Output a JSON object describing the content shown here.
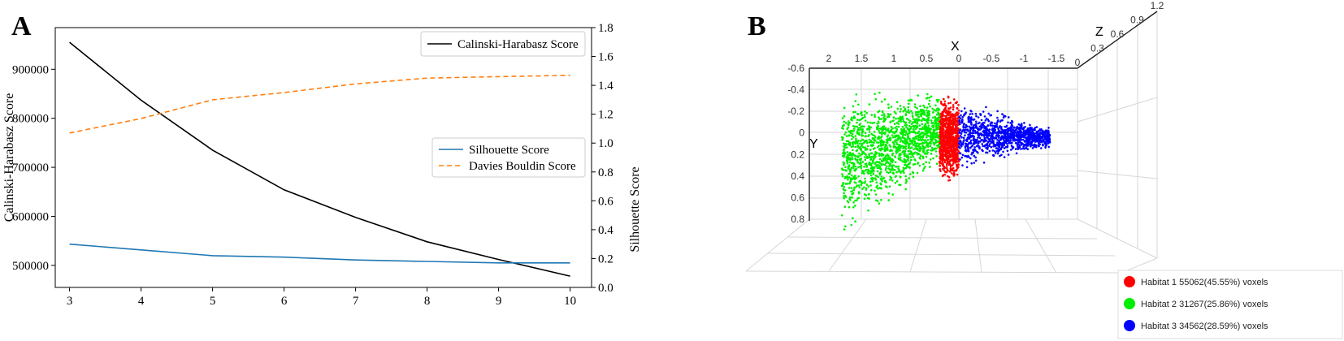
{
  "panels": {
    "a": "A",
    "b": "B"
  },
  "chart_data": [
    {
      "type": "line",
      "panel": "A",
      "x": [
        3,
        4,
        5,
        6,
        7,
        8,
        9,
        10
      ],
      "xlim": [
        2.8,
        10.3
      ],
      "ylabel": "Calinski-Harabasz Score",
      "ylabel_right": "Silhouette Score",
      "ylim_left": [
        455000,
        985000
      ],
      "ylim_right": [
        0,
        1.8
      ],
      "left_ticks": [
        "500000",
        "600000",
        "700000",
        "800000",
        "900000"
      ],
      "left_tick_values": [
        500000,
        600000,
        700000,
        800000,
        900000
      ],
      "right_ticks": [
        "0.0",
        "0.2",
        "0.4",
        "0.6",
        "0.8",
        "1.0",
        "1.2",
        "1.4",
        "1.6",
        "1.8"
      ],
      "right_tick_values": [
        0,
        0.2,
        0.4,
        0.6,
        0.8,
        1.0,
        1.2,
        1.4,
        1.6,
        1.8
      ],
      "x_ticks": [
        "3",
        "4",
        "5",
        "6",
        "7",
        "8",
        "9",
        "10"
      ],
      "series": [
        {
          "name": "Calinski-Harabasz Score",
          "axis": "left",
          "color": "#000000",
          "dash": "none",
          "values": [
            955000,
            837000,
            735000,
            654000,
            598000,
            548000,
            512000,
            478000
          ]
        },
        {
          "name": "Silhouette Score",
          "axis": "right",
          "color": "#1f77b4",
          "dash": "none",
          "values": [
            0.3,
            0.26,
            0.22,
            0.21,
            0.19,
            0.18,
            0.17,
            0.17
          ]
        },
        {
          "name": "Davies Bouldin Score",
          "axis": "right",
          "color": "#ff7f0e",
          "dash": "6,4",
          "values": [
            1.07,
            1.17,
            1.3,
            1.35,
            1.41,
            1.45,
            1.46,
            1.47
          ]
        }
      ],
      "legend_top": "Calinski-Harabasz Score",
      "legend_mid": [
        "Silhouette Score",
        "Davies Bouldin Score"
      ]
    },
    {
      "type": "scatter",
      "panel": "B",
      "axes": {
        "x": "X",
        "y": "Y",
        "z": "Z"
      },
      "x_ticks": [
        "2",
        "1.5",
        "1",
        "0.5",
        "0",
        "-0.5",
        "-1",
        "-1.5"
      ],
      "x_tick_values": [
        2,
        1.5,
        1,
        0.5,
        0,
        -0.5,
        -1,
        -1.5
      ],
      "y_ticks": [
        "-0.6",
        "-0.4",
        "-0.2",
        "0",
        "0.2",
        "0.4",
        "0.6",
        "0.8"
      ],
      "y_tick_values": [
        -0.6,
        -0.4,
        -0.2,
        0,
        0.2,
        0.4,
        0.6,
        0.8
      ],
      "z_ticks": [
        "0",
        "0.3",
        "0.6",
        "0.9",
        "1.2"
      ],
      "z_tick_values": [
        0,
        0.3,
        0.6,
        0.9,
        1.2
      ],
      "xlim": [
        2,
        -1.5
      ],
      "ylim": [
        -0.6,
        0.8
      ],
      "clusters": [
        {
          "name": "Habitat 1",
          "label": "Habitat 1 55062(45.55%) voxels",
          "color": "#ff0000",
          "x_range": [
            0,
            0.3
          ],
          "y_range": [
            -0.4,
            0.5
          ]
        },
        {
          "name": "Habitat 2",
          "label": "Habitat 2 31267(25.86%) voxels",
          "color": "#00ee00",
          "x_range": [
            0.3,
            1.8
          ],
          "y_range": [
            -0.45,
            0.9
          ]
        },
        {
          "name": "Habitat 3",
          "label": "Habitat 3 34562(28.59%) voxels",
          "color": "#0000ff",
          "x_range": [
            -1.4,
            0
          ],
          "y_range": [
            -0.35,
            0.38
          ]
        }
      ]
    }
  ]
}
